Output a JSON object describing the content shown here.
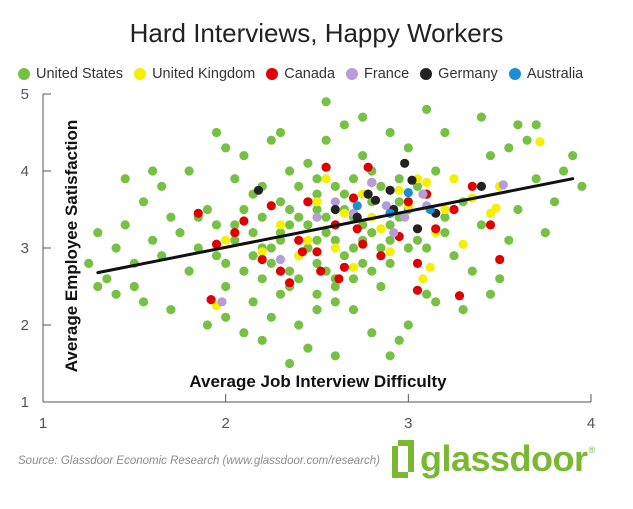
{
  "chart_data": {
    "type": "scatter",
    "title": "Hard Interviews, Happy Workers",
    "xlabel": "Average Job Interview Difficulty",
    "ylabel": "Average Employee Satisfaction",
    "xlim": [
      1,
      4
    ],
    "ylim": [
      1,
      5
    ],
    "xticks": [
      "1",
      "2",
      "3",
      "4"
    ],
    "yticks": [
      "1",
      "2",
      "3",
      "4",
      "5"
    ],
    "grid": false,
    "legend_position": "top",
    "series": [
      {
        "name": "United States",
        "color": "#76c043",
        "points": [
          [
            2.5,
            3.1
          ],
          [
            2.55,
            3.2
          ],
          [
            2.45,
            3.0
          ],
          [
            2.6,
            3.3
          ],
          [
            2.4,
            2.9
          ],
          [
            2.7,
            3.4
          ],
          [
            2.3,
            3.1
          ],
          [
            2.65,
            2.9
          ],
          [
            2.5,
            3.5
          ],
          [
            2.35,
            3.3
          ],
          [
            2.8,
            3.6
          ],
          [
            2.2,
            3.0
          ],
          [
            2.9,
            3.3
          ],
          [
            2.15,
            3.2
          ],
          [
            2.75,
            3.1
          ],
          [
            2.55,
            2.7
          ],
          [
            2.45,
            3.6
          ],
          [
            3.0,
            3.5
          ],
          [
            2.05,
            3.1
          ],
          [
            2.85,
            3.0
          ],
          [
            2.6,
            3.8
          ],
          [
            2.4,
            2.6
          ],
          [
            3.1,
            3.7
          ],
          [
            1.95,
            3.3
          ],
          [
            2.95,
            3.9
          ],
          [
            2.25,
            2.8
          ],
          [
            2.7,
            2.6
          ],
          [
            2.5,
            3.9
          ],
          [
            3.2,
            3.4
          ],
          [
            1.85,
            3.0
          ],
          [
            2.3,
            3.6
          ],
          [
            2.8,
            4.0
          ],
          [
            2.1,
            2.7
          ],
          [
            3.05,
            3.1
          ],
          [
            2.65,
            3.5
          ],
          [
            2.35,
            2.5
          ],
          [
            1.9,
            3.5
          ],
          [
            2.9,
            2.8
          ],
          [
            2.5,
            2.4
          ],
          [
            3.3,
            3.6
          ],
          [
            2.0,
            2.5
          ],
          [
            2.75,
            4.2
          ],
          [
            2.2,
            3.8
          ],
          [
            3.15,
            4.0
          ],
          [
            1.75,
            3.2
          ],
          [
            2.45,
            4.1
          ],
          [
            3.4,
            3.3
          ],
          [
            2.6,
            2.3
          ],
          [
            1.8,
            2.7
          ],
          [
            3.0,
            4.3
          ],
          [
            2.15,
            2.3
          ],
          [
            2.85,
            2.5
          ],
          [
            3.5,
            3.8
          ],
          [
            1.7,
            3.4
          ],
          [
            2.55,
            4.4
          ],
          [
            2.05,
            3.9
          ],
          [
            3.25,
            2.9
          ],
          [
            2.35,
            4.0
          ],
          [
            1.65,
            2.9
          ],
          [
            3.45,
            4.2
          ],
          [
            2.7,
            2.2
          ],
          [
            2.0,
            2.1
          ],
          [
            3.6,
            3.5
          ],
          [
            1.6,
            3.1
          ],
          [
            2.9,
            4.5
          ],
          [
            2.25,
            2.1
          ],
          [
            3.35,
            2.7
          ],
          [
            1.55,
            3.6
          ],
          [
            3.1,
            2.4
          ],
          [
            2.4,
            2.0
          ],
          [
            1.5,
            2.8
          ],
          [
            3.7,
            3.9
          ],
          [
            2.1,
            4.2
          ],
          [
            3.55,
            3.1
          ],
          [
            1.45,
            3.3
          ],
          [
            2.65,
            4.6
          ],
          [
            2.8,
            1.9
          ],
          [
            3.2,
            4.5
          ],
          [
            1.4,
            3.0
          ],
          [
            3.8,
            3.6
          ],
          [
            1.35,
            2.6
          ],
          [
            3.65,
            4.4
          ],
          [
            2.2,
            1.8
          ],
          [
            1.3,
            3.2
          ],
          [
            3.9,
            4.2
          ],
          [
            2.95,
            1.8
          ],
          [
            1.25,
            2.8
          ],
          [
            3.75,
            3.2
          ],
          [
            2.45,
            1.7
          ],
          [
            3.1,
            4.8
          ],
          [
            1.55,
            2.3
          ],
          [
            3.5,
            2.6
          ],
          [
            2.1,
            1.9
          ],
          [
            1.45,
            3.9
          ],
          [
            3.85,
            4.0
          ],
          [
            2.75,
            4.7
          ],
          [
            1.7,
            2.2
          ],
          [
            3.3,
            2.2
          ],
          [
            2.3,
            4.5
          ],
          [
            3.6,
            4.6
          ],
          [
            1.8,
            4.0
          ],
          [
            1.5,
            2.5
          ],
          [
            2.6,
            1.6
          ],
          [
            3.4,
            4.7
          ],
          [
            1.65,
            3.8
          ],
          [
            3.0,
            2.0
          ],
          [
            2.0,
            4.3
          ],
          [
            3.7,
            4.6
          ],
          [
            1.3,
            2.5
          ],
          [
            2.35,
            1.5
          ],
          [
            3.15,
            2.3
          ],
          [
            1.9,
            2.0
          ],
          [
            3.95,
            3.8
          ],
          [
            2.55,
            4.9
          ],
          [
            1.6,
            4.0
          ],
          [
            3.45,
            2.4
          ],
          [
            2.9,
            1.6
          ],
          [
            1.95,
            4.5
          ],
          [
            3.55,
            4.3
          ],
          [
            1.4,
            2.4
          ],
          [
            2.25,
            4.4
          ],
          [
            2.5,
            2.2
          ],
          [
            2.4,
            3.4
          ],
          [
            2.6,
            3.1
          ],
          [
            2.7,
            3.0
          ],
          [
            2.3,
            3.2
          ],
          [
            2.8,
            3.2
          ],
          [
            2.2,
            3.4
          ],
          [
            2.5,
            2.8
          ],
          [
            2.65,
            3.7
          ],
          [
            2.1,
            3.5
          ],
          [
            2.95,
            3.4
          ],
          [
            2.15,
            2.9
          ],
          [
            2.85,
            3.8
          ],
          [
            2.35,
            2.7
          ],
          [
            2.75,
            2.8
          ],
          [
            2.45,
            3.3
          ],
          [
            2.55,
            3.4
          ],
          [
            2.25,
            3.0
          ],
          [
            2.9,
            3.1
          ],
          [
            2.05,
            3.3
          ],
          [
            3.05,
            3.8
          ],
          [
            1.95,
            2.9
          ],
          [
            3.0,
            3.0
          ],
          [
            2.6,
            2.5
          ],
          [
            2.4,
            3.8
          ],
          [
            2.7,
            3.9
          ],
          [
            2.3,
            2.4
          ],
          [
            2.8,
            2.7
          ],
          [
            2.2,
            2.6
          ],
          [
            3.2,
            3.2
          ],
          [
            1.85,
            3.4
          ],
          [
            2.15,
            3.7
          ],
          [
            2.95,
            3.6
          ],
          [
            2.5,
            3.7
          ],
          [
            2.6,
            2.6
          ],
          [
            2.35,
            3.5
          ],
          [
            2.75,
            3.3
          ],
          [
            3.1,
            3.0
          ],
          [
            2.0,
            2.8
          ]
        ]
      },
      {
        "name": "United Kingdom",
        "color": "#f5ef00",
        "points": [
          [
            2.0,
            3.1
          ],
          [
            1.95,
            2.25
          ],
          [
            2.3,
            3.3
          ],
          [
            2.45,
            3.1
          ],
          [
            2.5,
            3.6
          ],
          [
            2.6,
            3.0
          ],
          [
            2.7,
            2.75
          ],
          [
            2.75,
            3.7
          ],
          [
            2.8,
            3.4
          ],
          [
            2.9,
            2.95
          ],
          [
            2.95,
            3.75
          ],
          [
            3.0,
            3.55
          ],
          [
            3.05,
            3.9
          ],
          [
            3.1,
            3.85
          ],
          [
            3.15,
            3.2
          ],
          [
            3.2,
            3.5
          ],
          [
            3.25,
            3.9
          ],
          [
            3.3,
            3.05
          ],
          [
            3.45,
            3.45
          ],
          [
            3.5,
            3.8
          ],
          [
            3.72,
            4.38
          ],
          [
            2.55,
            3.9
          ],
          [
            2.85,
            3.25
          ],
          [
            3.12,
            2.75
          ],
          [
            2.4,
            2.9
          ],
          [
            3.35,
            3.65
          ],
          [
            2.65,
            3.45
          ],
          [
            3.48,
            3.52
          ],
          [
            2.2,
            2.95
          ],
          [
            3.08,
            2.6
          ]
        ]
      },
      {
        "name": "Canada",
        "color": "#e00000",
        "points": [
          [
            1.85,
            3.45
          ],
          [
            1.95,
            3.05
          ],
          [
            2.05,
            3.2
          ],
          [
            2.1,
            3.35
          ],
          [
            2.2,
            2.85
          ],
          [
            2.25,
            3.55
          ],
          [
            2.3,
            2.7
          ],
          [
            2.35,
            2.55
          ],
          [
            2.4,
            3.1
          ],
          [
            2.45,
            3.6
          ],
          [
            2.5,
            2.95
          ],
          [
            2.55,
            4.05
          ],
          [
            2.6,
            3.3
          ],
          [
            2.65,
            2.75
          ],
          [
            2.7,
            3.65
          ],
          [
            2.75,
            3.05
          ],
          [
            2.8,
            3.85
          ],
          [
            2.85,
            2.9
          ],
          [
            2.9,
            3.45
          ],
          [
            2.95,
            3.15
          ],
          [
            3.0,
            3.6
          ],
          [
            3.05,
            2.8
          ],
          [
            3.1,
            3.7
          ],
          [
            3.15,
            3.25
          ],
          [
            3.25,
            3.5
          ],
          [
            3.35,
            3.8
          ],
          [
            3.45,
            3.3
          ],
          [
            3.5,
            2.85
          ],
          [
            3.28,
            2.38
          ],
          [
            3.05,
            2.45
          ],
          [
            2.62,
            2.6
          ],
          [
            2.78,
            4.05
          ],
          [
            2.52,
            2.7
          ],
          [
            1.92,
            2.33
          ],
          [
            2.42,
            2.95
          ],
          [
            2.72,
            3.25
          ]
        ]
      },
      {
        "name": "France",
        "color": "#b69cd8",
        "points": [
          [
            1.98,
            2.3
          ],
          [
            2.3,
            2.85
          ],
          [
            2.5,
            3.4
          ],
          [
            2.7,
            3.45
          ],
          [
            2.8,
            3.85
          ],
          [
            2.88,
            3.55
          ],
          [
            2.98,
            3.4
          ],
          [
            3.08,
            3.7
          ],
          [
            3.1,
            3.55
          ],
          [
            3.52,
            3.82
          ],
          [
            2.6,
            3.6
          ],
          [
            2.92,
            3.2
          ]
        ]
      },
      {
        "name": "Germany",
        "color": "#222222",
        "points": [
          [
            2.18,
            3.75
          ],
          [
            2.6,
            3.5
          ],
          [
            2.72,
            3.4
          ],
          [
            2.78,
            3.7
          ],
          [
            2.82,
            3.62
          ],
          [
            2.9,
            3.75
          ],
          [
            2.92,
            3.5
          ],
          [
            2.98,
            4.1
          ],
          [
            3.02,
            3.88
          ],
          [
            3.05,
            3.25
          ],
          [
            3.15,
            3.45
          ],
          [
            3.4,
            3.8
          ]
        ]
      },
      {
        "name": "Australia",
        "color": "#1c8fd4",
        "points": [
          [
            2.72,
            3.55
          ],
          [
            2.9,
            3.45
          ],
          [
            3.0,
            3.72
          ],
          [
            3.12,
            3.5
          ]
        ]
      }
    ],
    "trendline": {
      "x": [
        1.3,
        3.9
      ],
      "y": [
        2.68,
        3.9
      ],
      "color": "#111111"
    }
  },
  "source": "Source: Glassdoor Economic Research (www.glassdoor.com/research)",
  "logo": {
    "text": "glassdoor",
    "registered": "®",
    "color": "#7ab833"
  }
}
